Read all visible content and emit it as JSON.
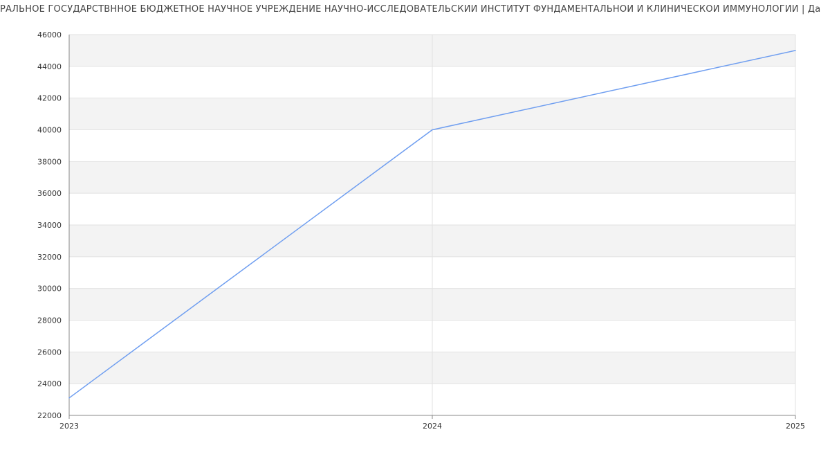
{
  "title": "РАЛЬНОЕ ГОСУДАРСТВННОЕ БЮДЖЕТНОЕ НАУЧНОЕ УЧРЕЖДЕНИЕ НАУЧНО-ИССЛЕДОВАТЕЛЬСКИЙ ИНСТИТУТ ФУНДАМЕНТАЛЬНОЙ И КЛИНИЧЕСКОЙ ИММУНОЛОГИИ | Да",
  "chart_data": {
    "type": "line",
    "title": "РАЛЬНОЕ ГОСУДАРСТВННОЕ БЮДЖЕТНОЕ НАУЧНОЕ УЧРЕЖДЕНИЕ НАУЧНО-ИССЛЕДОВАТЕЛЬСКИЙ ИНСТИТУТ ФУНДАМЕНТАЛЬНОЙ И КЛИНИЧЕСКОЙ ИММУНОЛОГИИ | Да",
    "x": [
      "2023",
      "2024",
      "2025"
    ],
    "series": [
      {
        "values": [
          23100,
          40000,
          45000
        ],
        "color": "#6f9ef0"
      }
    ],
    "xlim": [
      2023,
      2025
    ],
    "ylim": [
      22000,
      46000
    ],
    "yticks": [
      22000,
      24000,
      26000,
      28000,
      30000,
      32000,
      34000,
      36000,
      38000,
      40000,
      42000,
      44000,
      46000
    ],
    "xticks": [
      "2023",
      "2024",
      "2025"
    ],
    "grid": true,
    "band_color": "#f3f3f3"
  }
}
